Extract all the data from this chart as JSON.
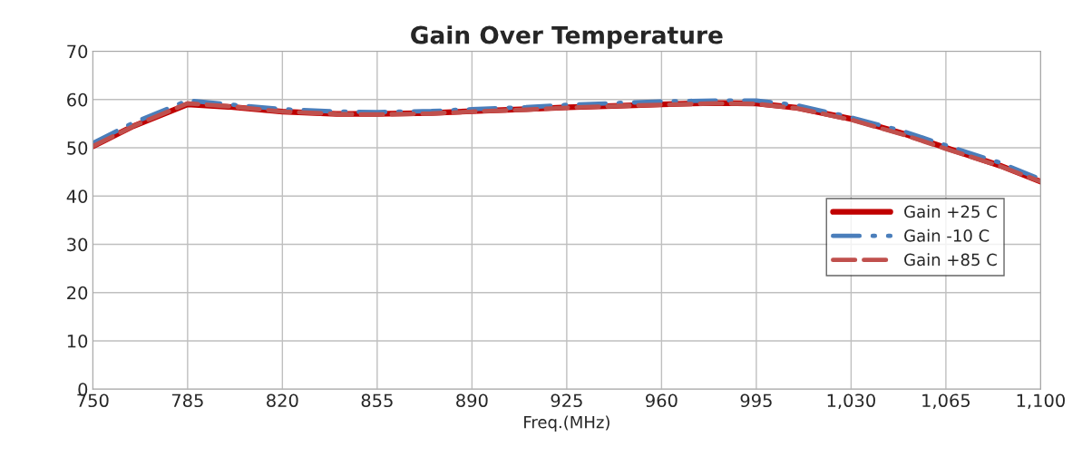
{
  "chart_data": {
    "type": "line",
    "title": "Gain Over Temperature",
    "xlabel": "Freq.(MHz)",
    "x": [
      750,
      765,
      785,
      800,
      820,
      840,
      855,
      875,
      890,
      910,
      925,
      945,
      960,
      980,
      995,
      1010,
      1030,
      1050,
      1065,
      1085,
      1100
    ],
    "series": [
      {
        "name": "Gain +25 C",
        "color": "#c00000",
        "line_style": "solid",
        "values": [
          50.3,
          54.5,
          59.0,
          58.5,
          57.5,
          57.0,
          57.0,
          57.2,
          57.6,
          58.0,
          58.4,
          58.7,
          59.0,
          59.3,
          59.2,
          58.3,
          56.0,
          52.8,
          50.0,
          46.3,
          43.0
        ]
      },
      {
        "name": "Gain -10 C",
        "color": "#4a7ebb",
        "line_style": "dashdot",
        "values": [
          51.0,
          55.2,
          59.8,
          59.0,
          58.0,
          57.5,
          57.4,
          57.6,
          58.0,
          58.4,
          58.9,
          59.3,
          59.6,
          59.8,
          59.8,
          58.8,
          56.3,
          53.3,
          50.5,
          46.9,
          43.5
        ]
      },
      {
        "name": "Gain +85 C",
        "color": "#c0504d",
        "line_style": "dashed",
        "values": [
          50.3,
          54.5,
          59.2,
          58.6,
          57.5,
          57.0,
          56.9,
          57.1,
          57.5,
          57.9,
          58.3,
          58.7,
          58.9,
          59.2,
          59.1,
          58.2,
          55.8,
          52.6,
          49.8,
          46.2,
          43.0
        ]
      }
    ],
    "xlim": [
      750,
      1100
    ],
    "xticks": [
      750,
      785,
      820,
      855,
      890,
      925,
      960,
      995,
      {
        "value": 1030,
        "label": "1,030"
      },
      {
        "value": 1065,
        "label": "1,065"
      },
      {
        "value": 1100,
        "label": "1,100"
      }
    ],
    "ylim": [
      0,
      70
    ],
    "yticks": [
      0,
      10,
      20,
      30,
      40,
      50,
      60,
      70
    ],
    "grid": true,
    "legend": "center right"
  }
}
